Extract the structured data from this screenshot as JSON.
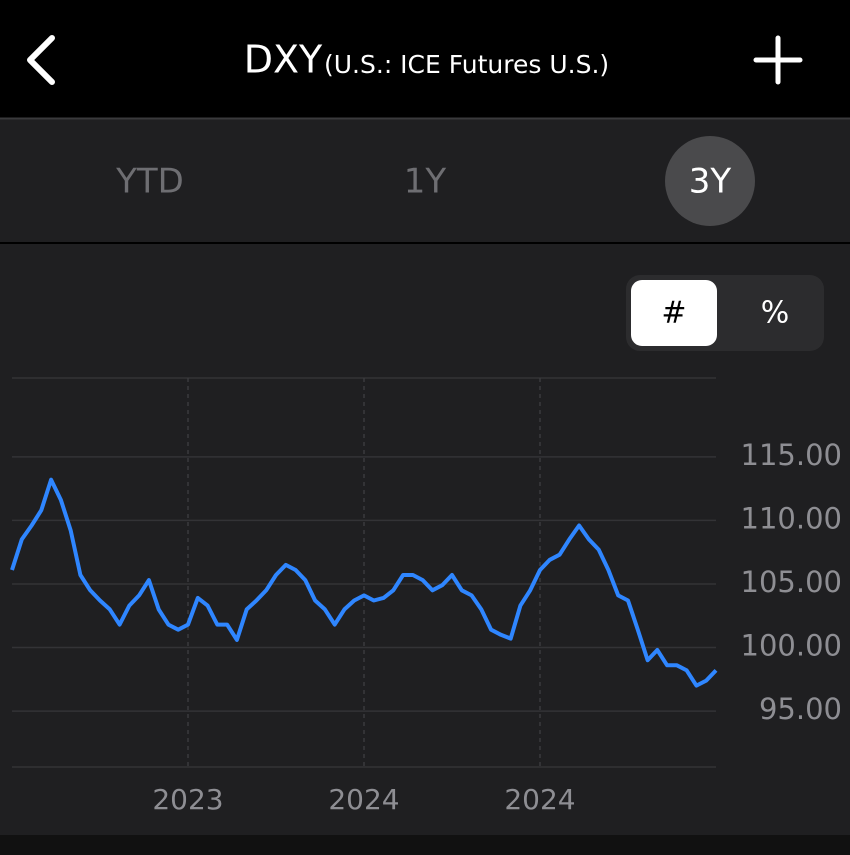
{
  "header": {
    "title": "DXY",
    "subtitle": "(U.S.: ICE Futures U.S.)"
  },
  "tabs": [
    "YTD",
    "1Y",
    "3Y"
  ],
  "toggle": [
    "#",
    "%"
  ],
  "chart_data": {
    "type": "line",
    "color": "#2f86ff",
    "values": [
      106.1,
      108.5,
      109.6,
      110.8,
      113.2,
      111.6,
      109.2,
      105.7,
      104.5,
      103.7,
      103,
      101.8,
      103.3,
      104.1,
      105.3,
      103,
      101.8,
      101.4,
      101.8,
      103.9,
      103.3,
      101.8,
      101.8,
      100.6,
      103,
      103.7,
      104.5,
      105.7,
      106.5,
      106.1,
      105.3,
      103.7,
      103,
      101.8,
      103,
      103.7,
      104.1,
      103.7,
      103.9,
      104.5,
      105.7,
      105.7,
      105.3,
      104.5,
      104.9,
      105.7,
      104.5,
      104.1,
      103,
      101.4,
      101,
      100.7,
      103.3,
      104.5,
      106.1,
      106.9,
      107.3,
      108.5,
      109.6,
      108.5,
      107.7,
      106.1,
      104.1,
      103.7,
      101.4,
      99,
      99.8,
      98.6,
      98.6,
      98.2,
      97,
      97.4,
      98.2
    ],
    "xlim": [
      0,
      72
    ],
    "xticks": [
      {
        "value": 18,
        "label": "2023"
      },
      {
        "value": 36,
        "label": "2024"
      },
      {
        "value": 54,
        "label": "2024"
      }
    ],
    "ylim": [
      90.6,
      121.2
    ],
    "yticks": [
      {
        "value": 95,
        "label": "95.00"
      },
      {
        "value": 100,
        "label": "100.00"
      },
      {
        "value": 105,
        "label": "105.00"
      },
      {
        "value": 110,
        "label": "110.00"
      },
      {
        "value": 115,
        "label": "115.00"
      }
    ],
    "grid": true
  }
}
